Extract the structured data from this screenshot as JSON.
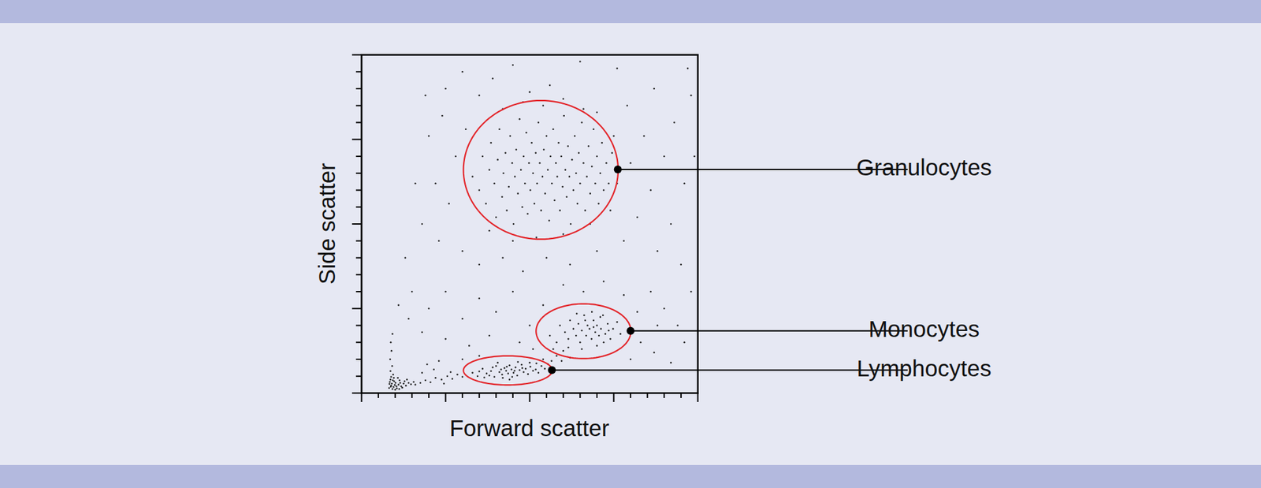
{
  "chart_data": {
    "type": "scatter",
    "x_label": "Forward scatter",
    "y_label": "Side scatter",
    "xlim": [
      0,
      1000
    ],
    "ylim": [
      0,
      1000
    ],
    "xticks": [
      0,
      50,
      100,
      150,
      200,
      250,
      300,
      350,
      400,
      450,
      500,
      550,
      600,
      650,
      700,
      750,
      800,
      850,
      900,
      950,
      1000
    ],
    "yticks": [
      0,
      50,
      100,
      150,
      200,
      250,
      300,
      350,
      400,
      450,
      500,
      550,
      600,
      650,
      700,
      750,
      800,
      850,
      900,
      950,
      1000
    ],
    "tick_labels": false,
    "grid": false,
    "color": "#222222",
    "marker": "circle",
    "points": [
      [
        82,
        15
      ],
      [
        88,
        22
      ],
      [
        95,
        18
      ],
      [
        101,
        30
      ],
      [
        86,
        40
      ],
      [
        92,
        12
      ],
      [
        110,
        25
      ],
      [
        118,
        20
      ],
      [
        97,
        35
      ],
      [
        105,
        14
      ],
      [
        125,
        28
      ],
      [
        132,
        22
      ],
      [
        90,
        28
      ],
      [
        84,
        33
      ],
      [
        99,
        24
      ],
      [
        113,
        38
      ],
      [
        140,
        30
      ],
      [
        147,
        26
      ],
      [
        88,
        48
      ],
      [
        94,
        55
      ],
      [
        86,
        65
      ],
      [
        91,
        80
      ],
      [
        85,
        100
      ],
      [
        89,
        125
      ],
      [
        87,
        150
      ],
      [
        92,
        175
      ],
      [
        108,
        45
      ],
      [
        121,
        16
      ],
      [
        135,
        40
      ],
      [
        155,
        33
      ],
      [
        160,
        25
      ],
      [
        100,
        10
      ],
      [
        83,
        27
      ],
      [
        96,
        45
      ],
      [
        115,
        30
      ],
      [
        128,
        35
      ],
      [
        104,
        20
      ],
      [
        93,
        38
      ],
      [
        87,
        19
      ],
      [
        112,
        12
      ],
      [
        175,
        30
      ],
      [
        190,
        38
      ],
      [
        205,
        32
      ],
      [
        220,
        45
      ],
      [
        238,
        40
      ],
      [
        255,
        50
      ],
      [
        270,
        42
      ],
      [
        285,
        55
      ],
      [
        300,
        48
      ],
      [
        180,
        60
      ],
      [
        215,
        70
      ],
      [
        245,
        28
      ],
      [
        265,
        62
      ],
      [
        195,
        85
      ],
      [
        230,
        95
      ],
      [
        330,
        60
      ],
      [
        345,
        50
      ],
      [
        360,
        72
      ],
      [
        372,
        58
      ],
      [
        385,
        65
      ],
      [
        395,
        48
      ],
      [
        400,
        80
      ],
      [
        410,
        62
      ],
      [
        418,
        55
      ],
      [
        425,
        74
      ],
      [
        430,
        66
      ],
      [
        436,
        58
      ],
      [
        440,
        82
      ],
      [
        446,
        70
      ],
      [
        452,
        60
      ],
      [
        458,
        76
      ],
      [
        463,
        52
      ],
      [
        470,
        68
      ],
      [
        476,
        84
      ],
      [
        482,
        62
      ],
      [
        488,
        72
      ],
      [
        495,
        56
      ],
      [
        502,
        78
      ],
      [
        510,
        66
      ],
      [
        518,
        70
      ],
      [
        526,
        60
      ],
      [
        535,
        80
      ],
      [
        545,
        72
      ],
      [
        405,
        90
      ],
      [
        420,
        45
      ],
      [
        448,
        48
      ],
      [
        465,
        92
      ],
      [
        390,
        76
      ],
      [
        380,
        52
      ],
      [
        500,
        90
      ],
      [
        415,
        70
      ],
      [
        432,
        78
      ],
      [
        455,
        66
      ],
      [
        478,
        74
      ],
      [
        350,
        64
      ],
      [
        365,
        46
      ],
      [
        440,
        40
      ],
      [
        520,
        88
      ],
      [
        555,
        85
      ],
      [
        565,
        95
      ],
      [
        540,
        100
      ],
      [
        580,
        110
      ],
      [
        600,
        125
      ],
      [
        570,
        130
      ],
      [
        620,
        105
      ],
      [
        595,
        95
      ],
      [
        560,
        170
      ],
      [
        580,
        150
      ],
      [
        590,
        200
      ],
      [
        605,
        180
      ],
      [
        615,
        160
      ],
      [
        620,
        215
      ],
      [
        630,
        190
      ],
      [
        638,
        170
      ],
      [
        645,
        205
      ],
      [
        650,
        150
      ],
      [
        655,
        185
      ],
      [
        662,
        230
      ],
      [
        668,
        170
      ],
      [
        672,
        200
      ],
      [
        678,
        190
      ],
      [
        684,
        160
      ],
      [
        690,
        215
      ],
      [
        695,
        180
      ],
      [
        700,
        200
      ],
      [
        706,
        170
      ],
      [
        712,
        190
      ],
      [
        718,
        230
      ],
      [
        725,
        175
      ],
      [
        732,
        205
      ],
      [
        740,
        160
      ],
      [
        748,
        190
      ],
      [
        760,
        210
      ],
      [
        770,
        175
      ],
      [
        640,
        235
      ],
      [
        685,
        240
      ],
      [
        655,
        130
      ],
      [
        700,
        140
      ],
      [
        720,
        150
      ],
      [
        615,
        135
      ],
      [
        665,
        215
      ],
      [
        690,
        195
      ],
      [
        710,
        225
      ],
      [
        735,
        185
      ],
      [
        330,
        640
      ],
      [
        350,
        600
      ],
      [
        360,
        700
      ],
      [
        370,
        560
      ],
      [
        380,
        660
      ],
      [
        385,
        740
      ],
      [
        395,
        620
      ],
      [
        400,
        520
      ],
      [
        405,
        690
      ],
      [
        410,
        780
      ],
      [
        418,
        580
      ],
      [
        422,
        650
      ],
      [
        428,
        710
      ],
      [
        432,
        540
      ],
      [
        438,
        610
      ],
      [
        442,
        760
      ],
      [
        448,
        680
      ],
      [
        452,
        500
      ],
      [
        456,
        640
      ],
      [
        460,
        720
      ],
      [
        465,
        590
      ],
      [
        470,
        810
      ],
      [
        474,
        660
      ],
      [
        478,
        550
      ],
      [
        482,
        700
      ],
      [
        486,
        620
      ],
      [
        490,
        770
      ],
      [
        494,
        530
      ],
      [
        498,
        680
      ],
      [
        502,
        600
      ],
      [
        506,
        740
      ],
      [
        510,
        650
      ],
      [
        514,
        560
      ],
      [
        518,
        710
      ],
      [
        522,
        620
      ],
      [
        526,
        800
      ],
      [
        530,
        680
      ],
      [
        534,
        540
      ],
      [
        538,
        640
      ],
      [
        542,
        720
      ],
      [
        546,
        590
      ],
      [
        550,
        760
      ],
      [
        554,
        660
      ],
      [
        558,
        510
      ],
      [
        562,
        700
      ],
      [
        566,
        620
      ],
      [
        570,
        780
      ],
      [
        574,
        570
      ],
      [
        578,
        680
      ],
      [
        582,
        640
      ],
      [
        586,
        740
      ],
      [
        590,
        540
      ],
      [
        594,
        700
      ],
      [
        598,
        610
      ],
      [
        602,
        820
      ],
      [
        606,
        660
      ],
      [
        610,
        580
      ],
      [
        614,
        730
      ],
      [
        618,
        640
      ],
      [
        622,
        500
      ],
      [
        626,
        690
      ],
      [
        630,
        600
      ],
      [
        634,
        760
      ],
      [
        638,
        650
      ],
      [
        642,
        560
      ],
      [
        646,
        710
      ],
      [
        650,
        620
      ],
      [
        655,
        800
      ],
      [
        660,
        680
      ],
      [
        665,
        540
      ],
      [
        670,
        640
      ],
      [
        675,
        730
      ],
      [
        680,
        590
      ],
      [
        685,
        670
      ],
      [
        690,
        780
      ],
      [
        695,
        620
      ],
      [
        700,
        700
      ],
      [
        705,
        560
      ],
      [
        710,
        650
      ],
      [
        715,
        740
      ],
      [
        720,
        600
      ],
      [
        728,
        680
      ],
      [
        735,
        620
      ],
      [
        745,
        710
      ],
      [
        420,
        840
      ],
      [
        480,
        860
      ],
      [
        540,
        850
      ],
      [
        600,
        870
      ],
      [
        660,
        840
      ],
      [
        380,
        480
      ],
      [
        450,
        450
      ],
      [
        520,
        460
      ],
      [
        600,
        470
      ],
      [
        680,
        500
      ],
      [
        740,
        540
      ],
      [
        760,
        620
      ],
      [
        750,
        760
      ],
      [
        700,
        830
      ],
      [
        500,
        890
      ],
      [
        560,
        910
      ],
      [
        250,
        900
      ],
      [
        300,
        950
      ],
      [
        350,
        880
      ],
      [
        200,
        760
      ],
      [
        240,
        820
      ],
      [
        280,
        700
      ],
      [
        310,
        780
      ],
      [
        220,
        620
      ],
      [
        260,
        560
      ],
      [
        180,
        500
      ],
      [
        230,
        450
      ],
      [
        300,
        420
      ],
      [
        350,
        380
      ],
      [
        420,
        400
      ],
      [
        480,
        360
      ],
      [
        550,
        400
      ],
      [
        620,
        380
      ],
      [
        700,
        420
      ],
      [
        780,
        450
      ],
      [
        820,
        520
      ],
      [
        860,
        600
      ],
      [
        800,
        680
      ],
      [
        840,
        760
      ],
      [
        790,
        850
      ],
      [
        870,
        900
      ],
      [
        900,
        700
      ],
      [
        930,
        800
      ],
      [
        960,
        620
      ],
      [
        980,
        880
      ],
      [
        920,
        500
      ],
      [
        880,
        420
      ],
      [
        950,
        380
      ],
      [
        760,
        960
      ],
      [
        650,
        980
      ],
      [
        450,
        970
      ],
      [
        390,
        930
      ],
      [
        150,
        300
      ],
      [
        200,
        250
      ],
      [
        250,
        300
      ],
      [
        300,
        220
      ],
      [
        350,
        280
      ],
      [
        400,
        240
      ],
      [
        450,
        300
      ],
      [
        500,
        200
      ],
      [
        540,
        260
      ],
      [
        600,
        320
      ],
      [
        660,
        300
      ],
      [
        720,
        330
      ],
      [
        780,
        290
      ],
      [
        820,
        240
      ],
      [
        860,
        300
      ],
      [
        900,
        250
      ],
      [
        940,
        200
      ],
      [
        980,
        300
      ],
      [
        830,
        150
      ],
      [
        870,
        120
      ],
      [
        920,
        90
      ],
      [
        960,
        150
      ],
      [
        800,
        100
      ],
      [
        880,
        200
      ],
      [
        180,
        180
      ],
      [
        140,
        220
      ],
      [
        250,
        160
      ],
      [
        320,
        140
      ],
      [
        380,
        170
      ],
      [
        470,
        150
      ],
      [
        510,
        130
      ],
      [
        300,
        100
      ],
      [
        350,
        110
      ],
      [
        990,
        700
      ],
      [
        970,
        960
      ],
      [
        130,
        400
      ],
      [
        110,
        260
      ],
      [
        160,
        620
      ],
      [
        190,
        880
      ]
    ],
    "gates": [
      {
        "name": "Granulocytes",
        "cx": 533,
        "cy": 660,
        "rx": 230,
        "ry": 205,
        "color": "#e3262b"
      },
      {
        "name": "Monocytes",
        "cx": 660,
        "cy": 183,
        "rx": 141,
        "ry": 81,
        "color": "#e3262b"
      },
      {
        "name": "Lymphocytes",
        "cx": 435,
        "cy": 67,
        "rx": 132,
        "ry": 43,
        "color": "#e3262b"
      }
    ]
  }
}
